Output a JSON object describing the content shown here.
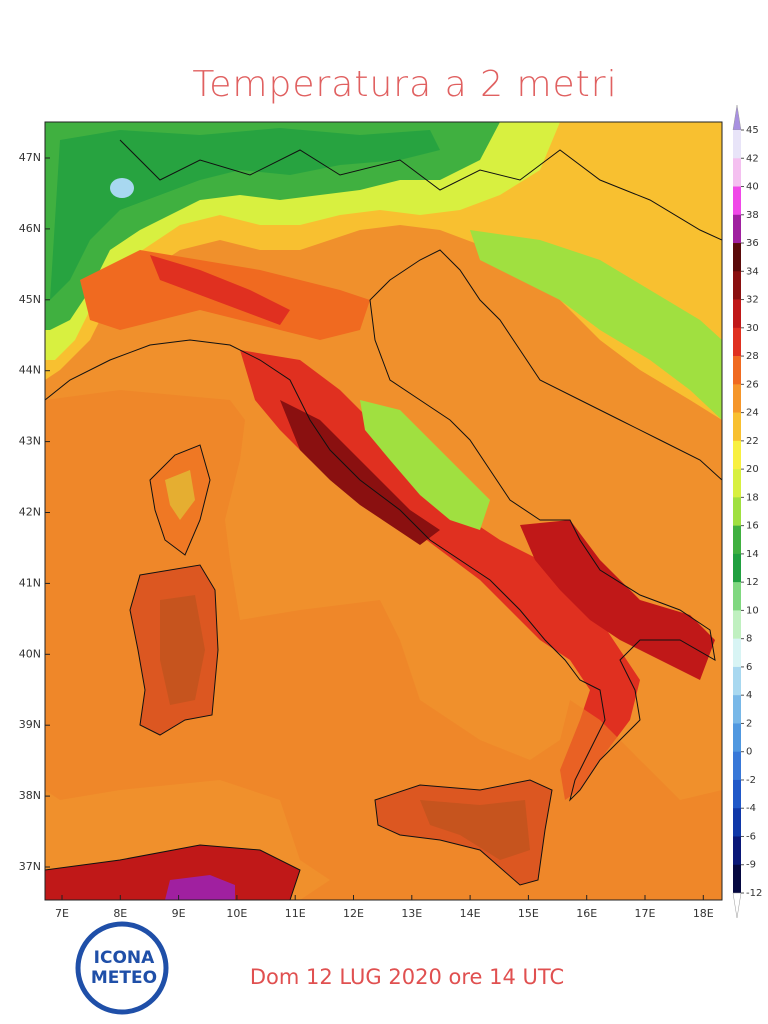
{
  "title": "Temperatura a 2 metri",
  "map": {
    "lat_ticks": [
      "47N",
      "46N",
      "45N",
      "44N",
      "43N",
      "42N",
      "41N",
      "40N",
      "39N",
      "38N",
      "37N"
    ],
    "lon_ticks": [
      "7E",
      "8E",
      "9E",
      "10E",
      "11E",
      "12E",
      "13E",
      "14E",
      "15E",
      "16E",
      "17E",
      "18E"
    ]
  },
  "colorbar": {
    "levels": [
      45,
      42,
      40,
      38,
      36,
      34,
      32,
      30,
      28,
      26,
      24,
      22,
      20,
      18,
      16,
      14,
      12,
      10,
      8,
      6,
      4,
      2,
      0,
      -2,
      -4,
      -6,
      -9,
      -12
    ],
    "colors": [
      "#a890e0",
      "#e8e4f8",
      "#f4c0f0",
      "#f048e8",
      "#a020a0",
      "#5a0a0a",
      "#8a1010",
      "#c01818",
      "#e03020",
      "#f06a20",
      "#f5962a",
      "#f8c030",
      "#f8f040",
      "#d8f040",
      "#a0e040",
      "#40b040",
      "#20a040",
      "#80d880",
      "#c0f0c0",
      "#d8f4f4",
      "#a8d8f0",
      "#78b8e8",
      "#5098e0",
      "#3878d8",
      "#2058c8",
      "#1038a8",
      "#0a1878",
      "#050840",
      "#ffffff"
    ]
  },
  "caption": "Dom 12 LUG 2020 ore 14 UTC",
  "logo": [
    "ICONA",
    "METEO"
  ]
}
